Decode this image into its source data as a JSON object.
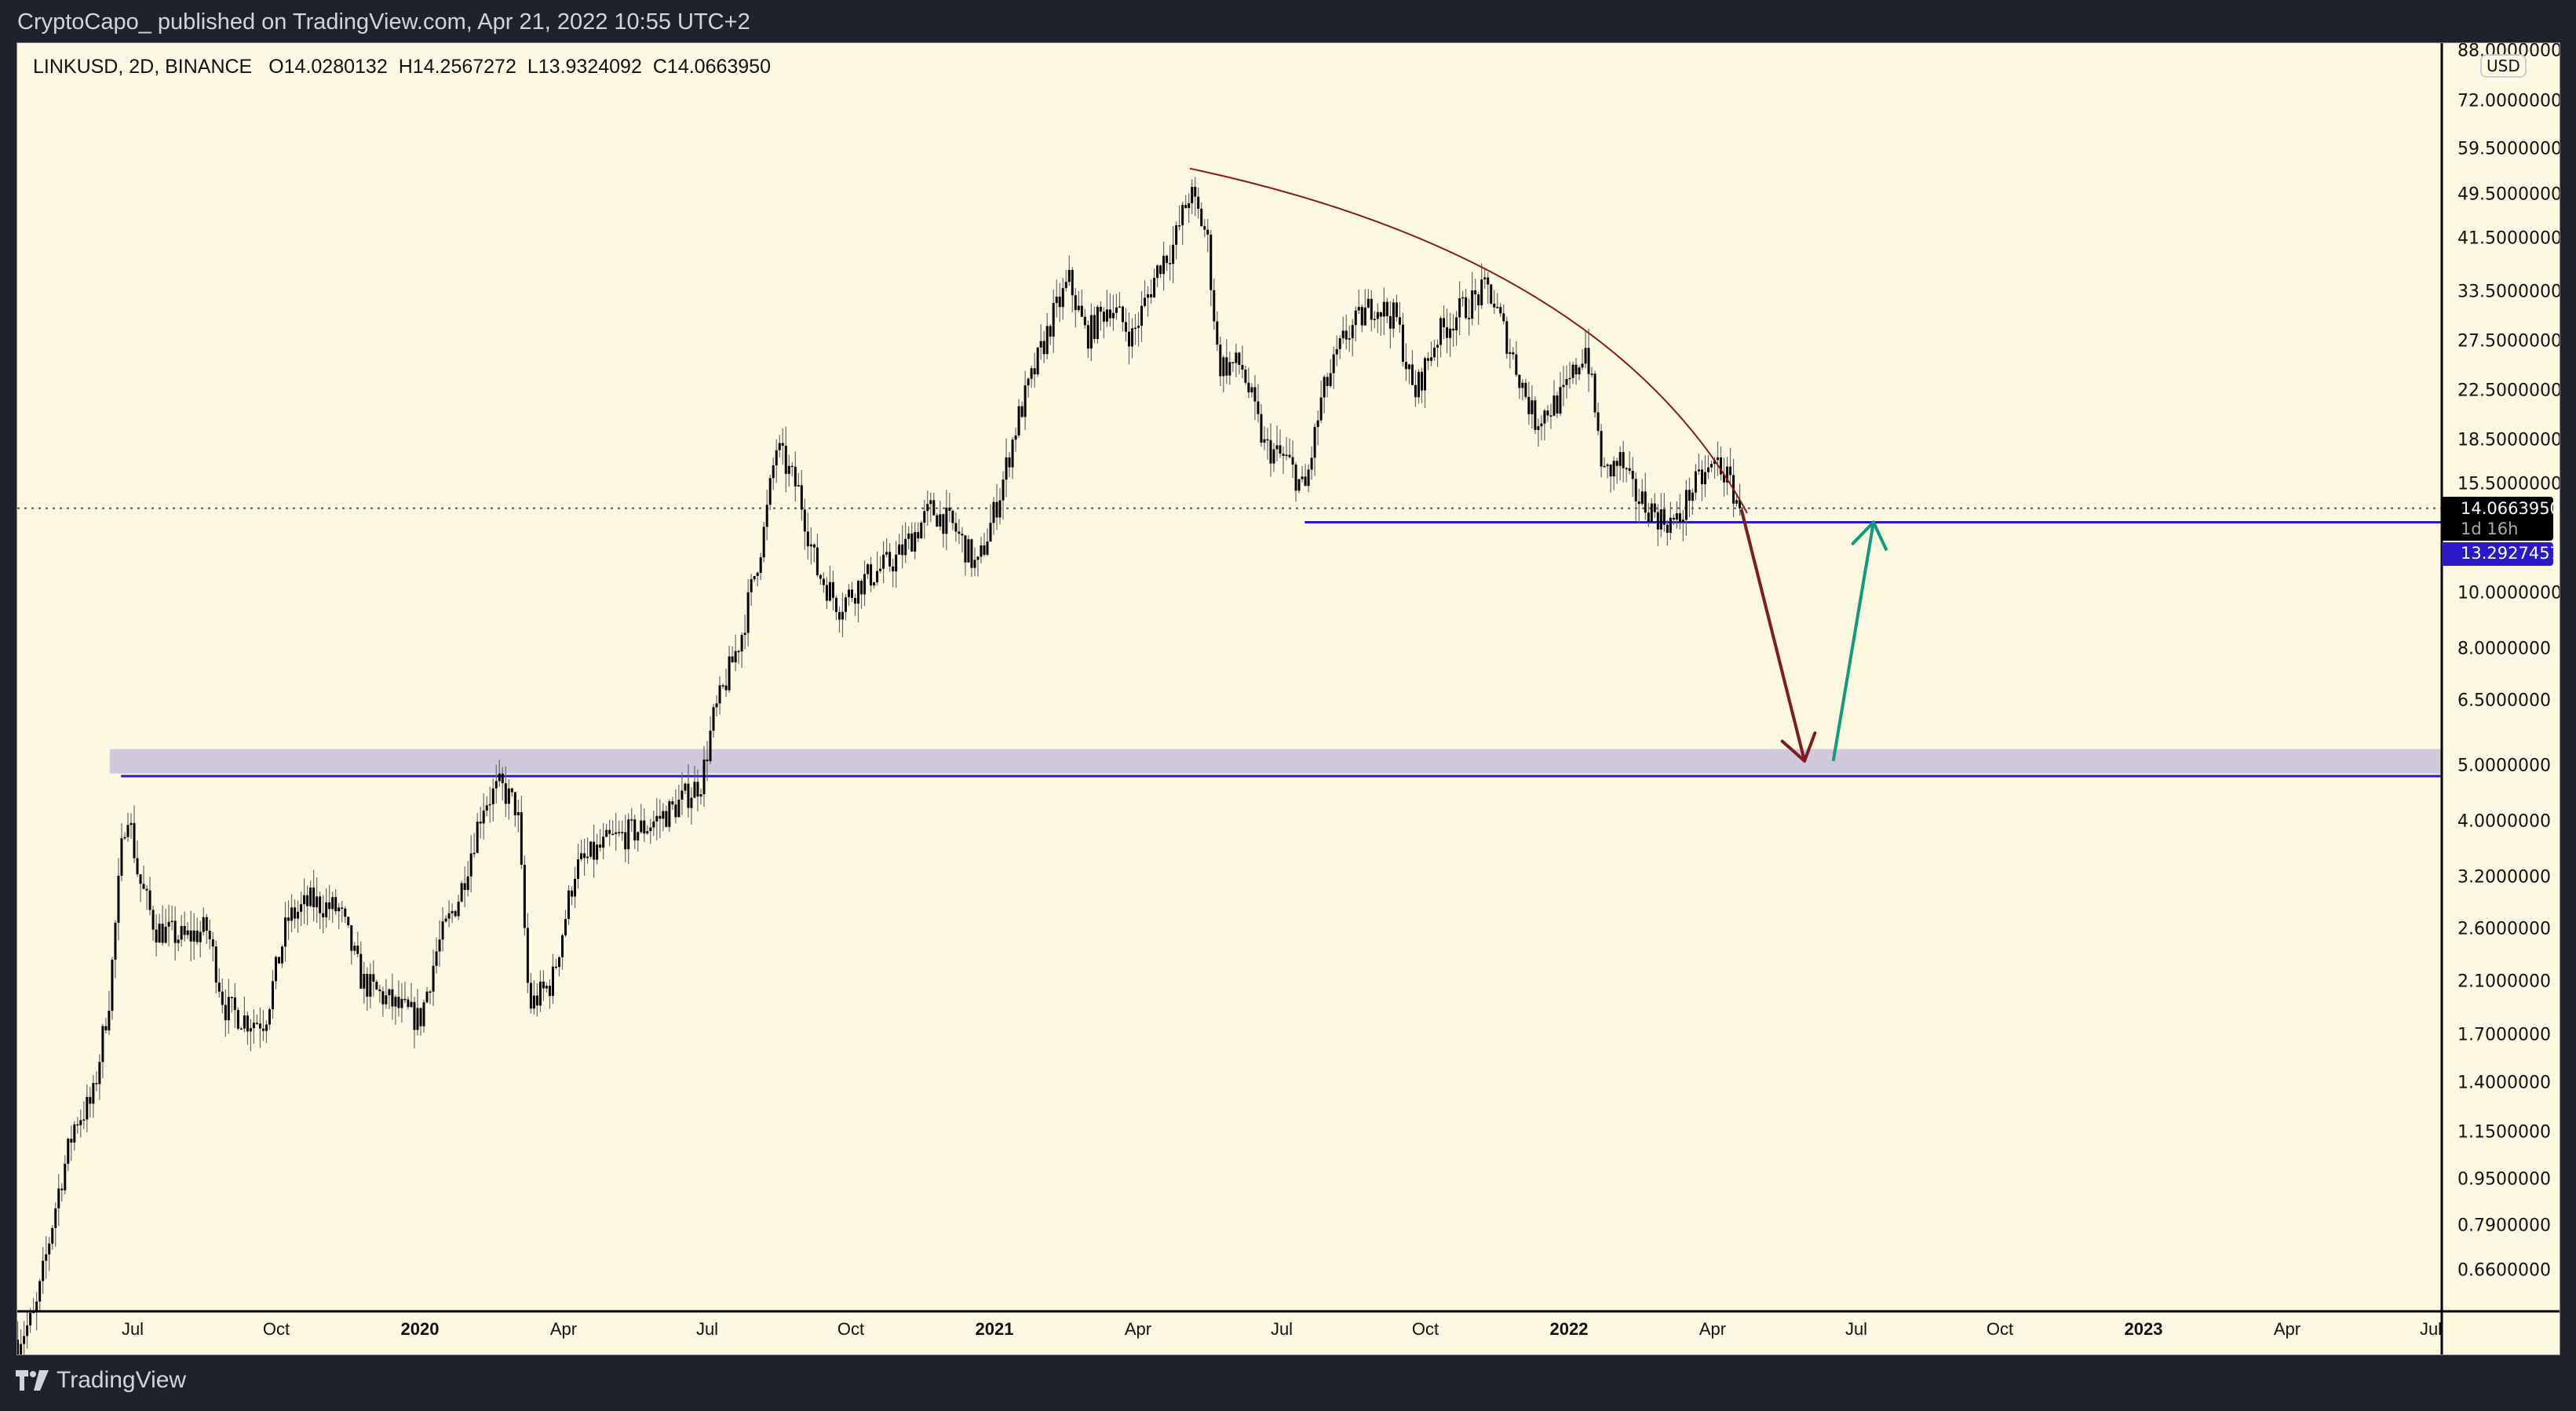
{
  "header": {
    "published": "CryptoCapo_ published on TradingView.com, Apr 21, 2022 10:55 UTC+2"
  },
  "legend": {
    "symbol": "LINKUSD, 2D, BINANCE",
    "open": "O14.0280132",
    "high": "H14.2567272",
    "low": "L13.9324092",
    "close": "C14.0663950"
  },
  "price_axis": {
    "currency": "USD",
    "last_price": "14.0663950",
    "countdown": "1d 16h",
    "level_price": "13.2927457"
  },
  "footer": {
    "brand": "TradingView"
  },
  "colors": {
    "background": "#fcf8e1",
    "level_line": "#2b18c8",
    "zone": "#d0c8dc",
    "down_arrow": "#7e1a22",
    "up_arrow": "#119a7e",
    "arc": "#8b1a1a"
  },
  "chart_data": {
    "type": "candlestick",
    "symbol": "LINKUSD",
    "interval": "2D",
    "scale": "log",
    "ylim": [
      0.5,
      90
    ],
    "xlim": [
      2019.3,
      2023.52
    ],
    "y_ticks": [
      "88.0000000",
      "72.0000000",
      "59.5000000",
      "49.5000000",
      "41.5000000",
      "33.5000000",
      "27.5000000",
      "22.5000000",
      "18.5000000",
      "15.5000000",
      "10.0000000",
      "8.0000000",
      "6.5000000",
      "5.0000000",
      "4.0000000",
      "3.2000000",
      "2.6000000",
      "2.1000000",
      "1.7000000",
      "1.4000000",
      "1.1500000",
      "0.9500000",
      "0.7900000",
      "0.6600000"
    ],
    "x_ticks": [
      {
        "t": 2019.5,
        "label": "Jul"
      },
      {
        "t": 2019.75,
        "label": "Oct"
      },
      {
        "t": 2020.0,
        "label": "2020",
        "year": true
      },
      {
        "t": 2020.25,
        "label": "Apr"
      },
      {
        "t": 2020.5,
        "label": "Jul"
      },
      {
        "t": 2020.75,
        "label": "Oct"
      },
      {
        "t": 2021.0,
        "label": "2021",
        "year": true
      },
      {
        "t": 2021.25,
        "label": "Apr"
      },
      {
        "t": 2021.5,
        "label": "Jul"
      },
      {
        "t": 2021.75,
        "label": "Oct"
      },
      {
        "t": 2022.0,
        "label": "2022",
        "year": true
      },
      {
        "t": 2022.25,
        "label": "Apr"
      },
      {
        "t": 2022.5,
        "label": "Jul"
      },
      {
        "t": 2022.75,
        "label": "Oct"
      },
      {
        "t": 2023.0,
        "label": "2023",
        "year": true
      },
      {
        "t": 2023.25,
        "label": "Apr"
      },
      {
        "t": 2023.5,
        "label": "Jul"
      }
    ],
    "price_path": [
      [
        2019.3,
        0.5
      ],
      [
        2019.33,
        0.55
      ],
      [
        2019.37,
        0.9
      ],
      [
        2019.4,
        1.2
      ],
      [
        2019.43,
        1.3
      ],
      [
        2019.46,
        2.0
      ],
      [
        2019.48,
        3.5
      ],
      [
        2019.49,
        4.3
      ],
      [
        2019.51,
        3.2
      ],
      [
        2019.54,
        2.6
      ],
      [
        2019.59,
        2.5
      ],
      [
        2019.63,
        2.6
      ],
      [
        2019.66,
        1.9
      ],
      [
        2019.7,
        1.8
      ],
      [
        2019.73,
        1.8
      ],
      [
        2019.77,
        2.7
      ],
      [
        2019.81,
        2.9
      ],
      [
        2019.86,
        2.8
      ],
      [
        2019.9,
        2.1
      ],
      [
        2019.96,
        1.9
      ],
      [
        2020.0,
        1.8
      ],
      [
        2020.03,
        2.4
      ],
      [
        2020.07,
        3.0
      ],
      [
        2020.11,
        4.3
      ],
      [
        2020.14,
        4.6
      ],
      [
        2020.17,
        4.2
      ],
      [
        2020.19,
        1.9
      ],
      [
        2020.23,
        2.1
      ],
      [
        2020.27,
        3.3
      ],
      [
        2020.33,
        3.7
      ],
      [
        2020.39,
        3.9
      ],
      [
        2020.44,
        4.2
      ],
      [
        2020.49,
        4.7
      ],
      [
        2020.51,
        6.0
      ],
      [
        2020.56,
        8.5
      ],
      [
        2020.6,
        13
      ],
      [
        2020.62,
        18
      ],
      [
        2020.66,
        15
      ],
      [
        2020.69,
        11
      ],
      [
        2020.73,
        9.5
      ],
      [
        2020.77,
        10.5
      ],
      [
        2020.83,
        11.5
      ],
      [
        2020.89,
        14
      ],
      [
        2020.93,
        13
      ],
      [
        2020.97,
        11
      ],
      [
        2021.01,
        15
      ],
      [
        2021.04,
        20
      ],
      [
        2021.1,
        30
      ],
      [
        2021.13,
        35
      ],
      [
        2021.16,
        28
      ],
      [
        2021.2,
        32
      ],
      [
        2021.24,
        28
      ],
      [
        2021.29,
        38
      ],
      [
        2021.31,
        40
      ],
      [
        2021.34,
        50
      ],
      [
        2021.37,
        42
      ],
      [
        2021.39,
        25
      ],
      [
        2021.43,
        25
      ],
      [
        2021.47,
        18
      ],
      [
        2021.51,
        17
      ],
      [
        2021.54,
        15
      ],
      [
        2021.57,
        22
      ],
      [
        2021.61,
        28
      ],
      [
        2021.66,
        32
      ],
      [
        2021.7,
        30
      ],
      [
        2021.73,
        22
      ],
      [
        2021.77,
        28
      ],
      [
        2021.81,
        31
      ],
      [
        2021.86,
        34
      ],
      [
        2021.89,
        28
      ],
      [
        2021.94,
        20
      ],
      [
        2021.99,
        22
      ],
      [
        2022.03,
        27
      ],
      [
        2022.06,
        16
      ],
      [
        2022.09,
        17
      ],
      [
        2022.11,
        15
      ],
      [
        2022.16,
        13.5
      ],
      [
        2022.19,
        13.2
      ],
      [
        2022.21,
        15
      ],
      [
        2022.26,
        17
      ],
      [
        2022.3,
        14.07
      ]
    ],
    "last_price": 14.066395,
    "annotations": {
      "support_level": 13.2927457,
      "support_level_start": 2021.54,
      "lower_level": 4.8,
      "lower_level_start": 2019.48,
      "zone": [
        4.85,
        5.35
      ],
      "zone_start": 2019.46,
      "down_arrow": {
        "from": [
          2022.3,
          14.0
        ],
        "to": [
          2022.41,
          5.1
        ]
      },
      "up_arrow": {
        "from": [
          2022.46,
          5.1
        ],
        "to": [
          2022.53,
          13.3
        ]
      },
      "arc": {
        "from": [
          2021.34,
          55
        ],
        "to": [
          2022.31,
          13.8
        ]
      }
    }
  }
}
